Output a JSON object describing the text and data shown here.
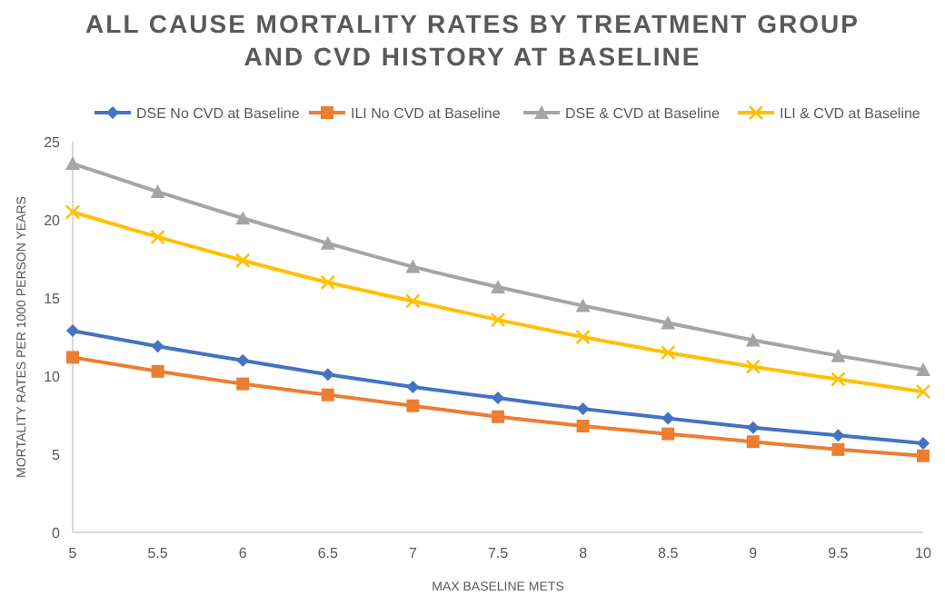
{
  "chart_data": {
    "type": "line",
    "title": "ALL CAUSE MORTALITY RATES BY TREATMENT GROUP AND CVD HISTORY AT BASELINE",
    "xlabel": "MAX BASELINE METS",
    "ylabel": "MORTALITY RATES PER 1000 PERSON YEARS",
    "x": [
      5,
      5.5,
      6,
      6.5,
      7,
      7.5,
      8,
      8.5,
      9,
      9.5,
      10
    ],
    "xlim": [
      5,
      10
    ],
    "xticks": [
      5,
      {
        "value": 5.5,
        "label": "5.5"
      },
      6,
      {
        "value": 6.5,
        "label": "6.5"
      },
      7,
      {
        "value": 7.5,
        "label": "7.5"
      },
      8,
      {
        "value": 8.5,
        "label": "8.5"
      },
      9,
      {
        "value": 9.5,
        "label": "9.5"
      },
      10
    ],
    "ylim": [
      0,
      25
    ],
    "yticks": [
      0,
      5,
      10,
      15,
      20,
      25
    ],
    "grid": false,
    "legend": "top",
    "series": [
      {
        "name": "DSE No CVD at Baseline",
        "color": "#4472c4",
        "marker": "diamond",
        "values": [
          12.9,
          11.9,
          11.0,
          10.1,
          9.3,
          8.6,
          7.9,
          7.3,
          6.7,
          6.2,
          5.7
        ]
      },
      {
        "name": "ILI No CVD at Baseline",
        "color": "#ed7d31",
        "marker": "square",
        "values": [
          11.2,
          10.3,
          9.5,
          8.8,
          8.1,
          7.4,
          6.8,
          6.3,
          5.8,
          5.3,
          4.9
        ]
      },
      {
        "name": "DSE & CVD at Baseline",
        "color": "#a5a5a5",
        "marker": "triangle",
        "values": [
          23.6,
          21.8,
          20.1,
          18.5,
          17.0,
          15.7,
          14.5,
          13.4,
          12.3,
          11.3,
          10.4
        ]
      },
      {
        "name": "ILI & CVD at Baseline",
        "color": "#ffc000",
        "marker": "cross",
        "values": [
          20.5,
          18.9,
          17.4,
          16.0,
          14.8,
          13.6,
          12.5,
          11.5,
          10.6,
          9.8,
          9.0
        ]
      }
    ]
  }
}
